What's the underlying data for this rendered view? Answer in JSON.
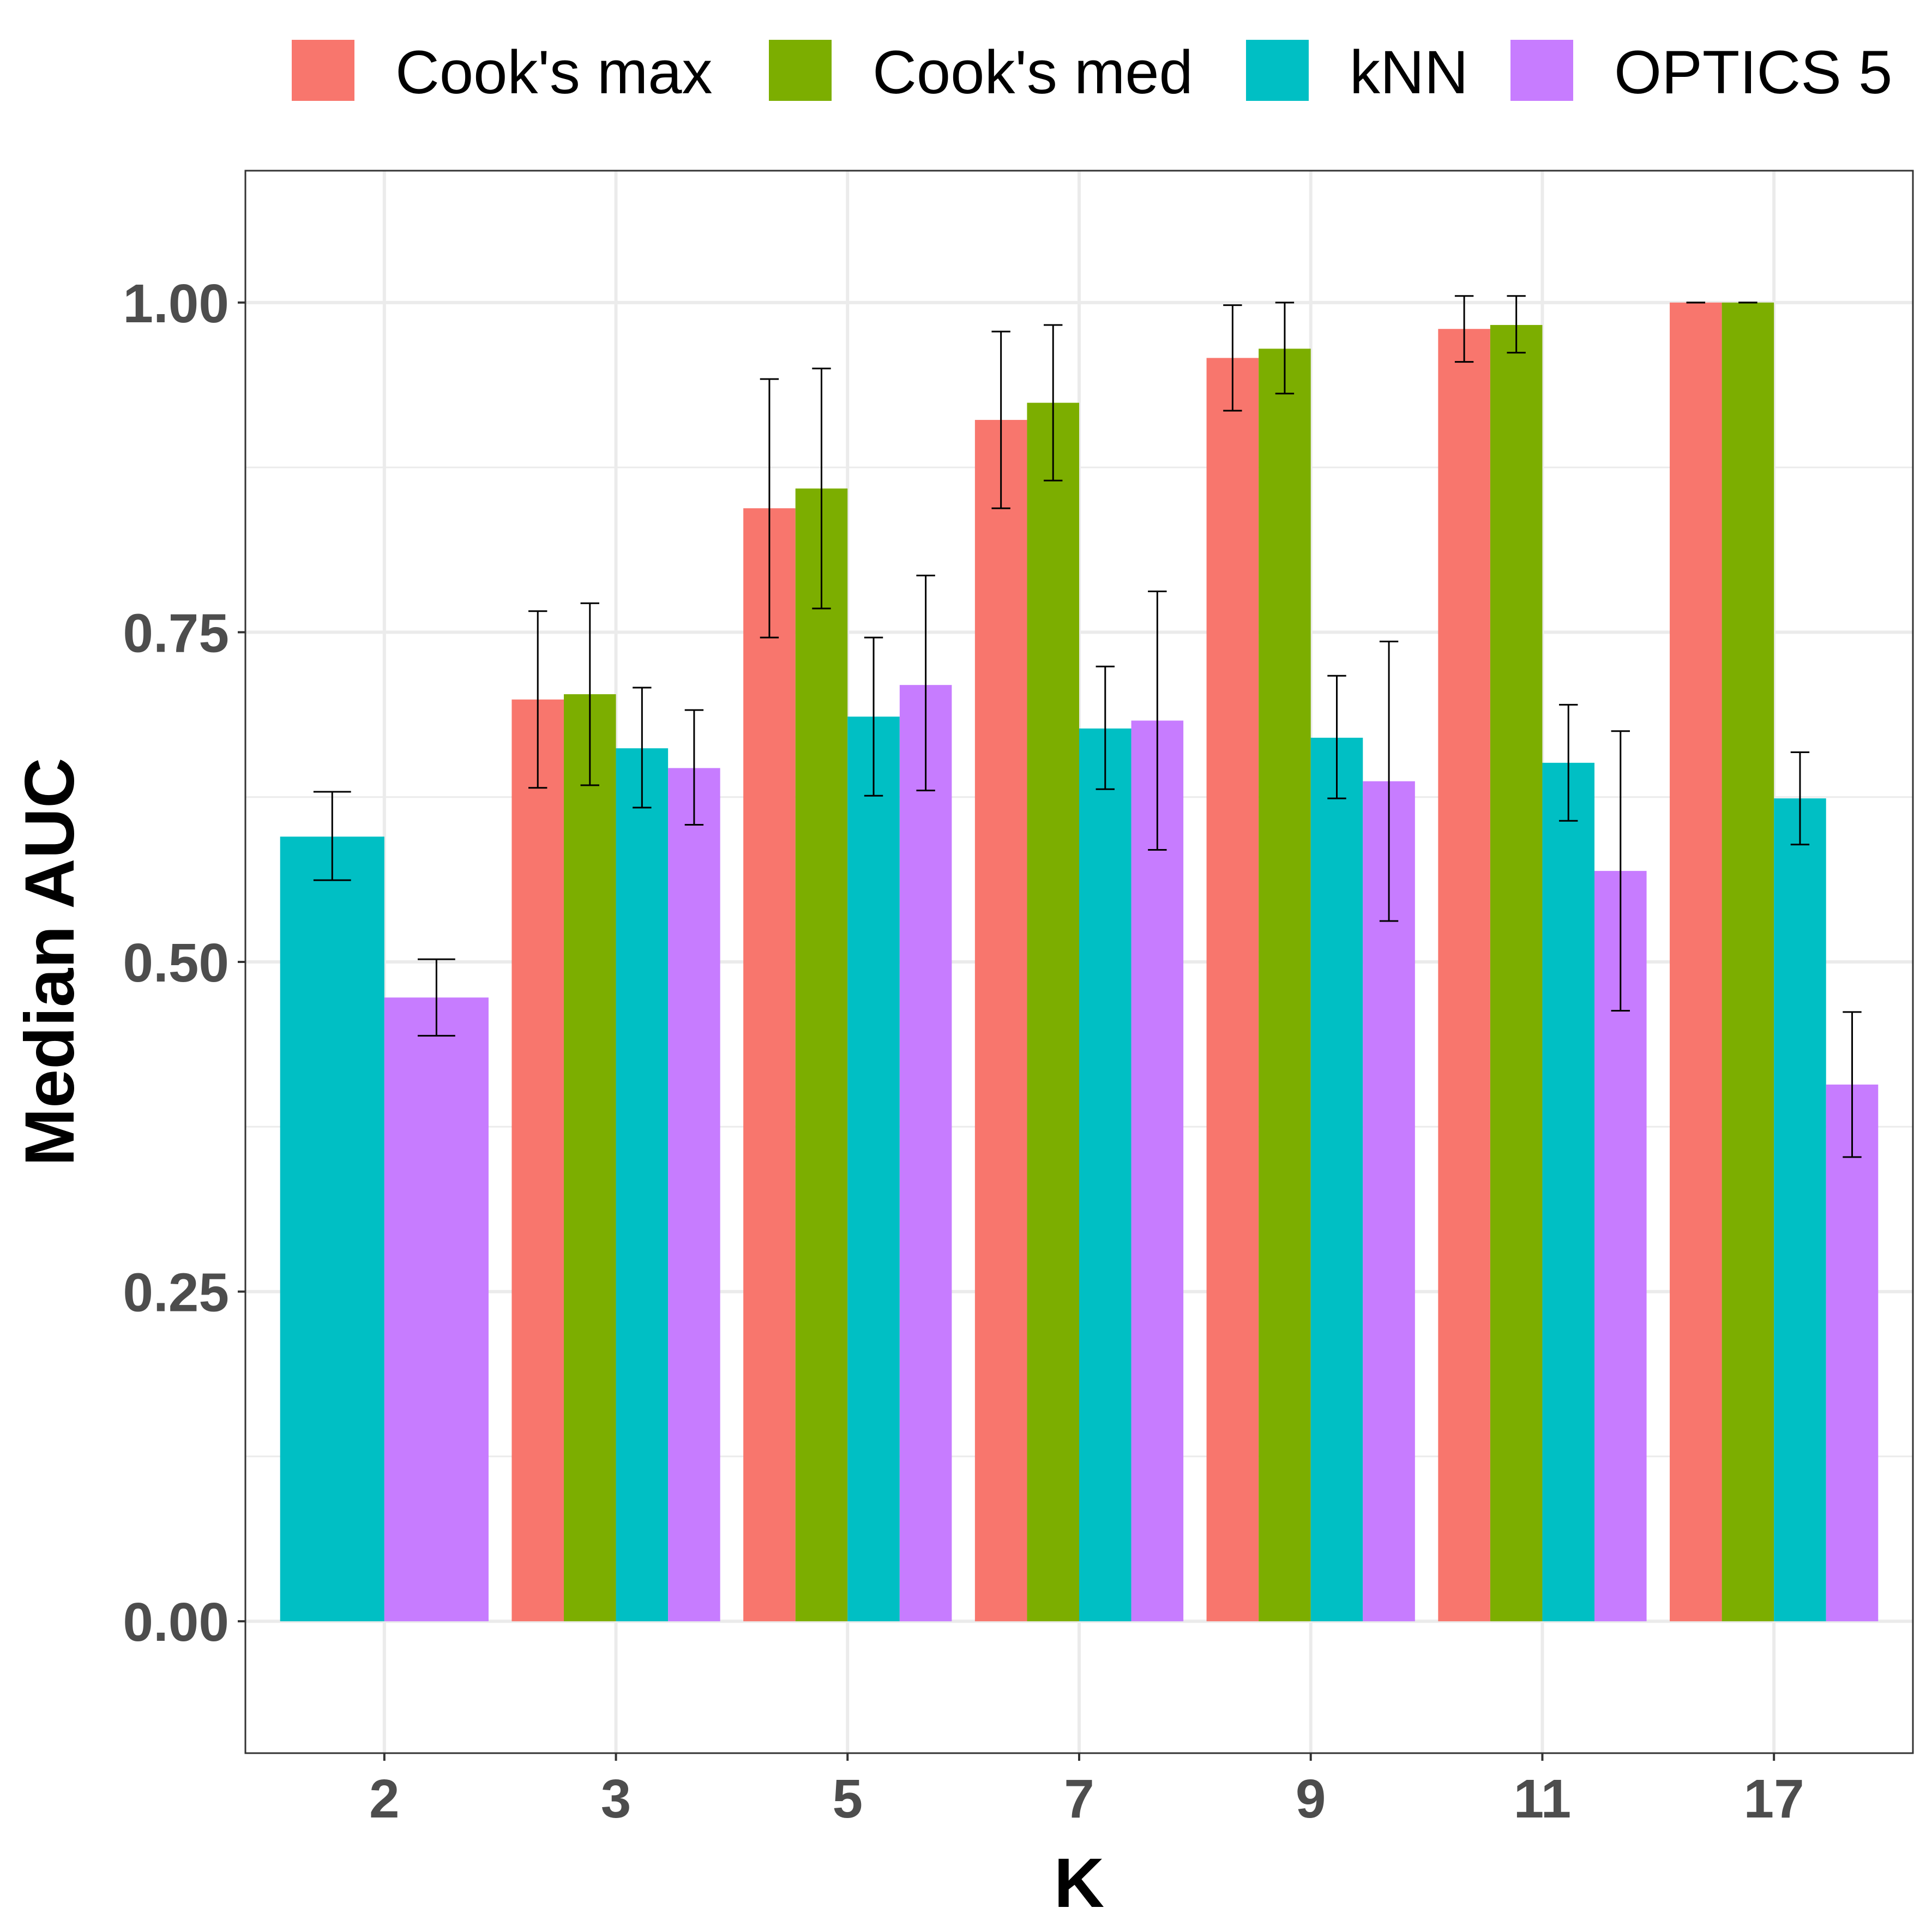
{
  "chart_data": {
    "type": "bar",
    "title": "",
    "xlabel": "K",
    "ylabel": "Median AUC",
    "categories": [
      "2",
      "3",
      "5",
      "7",
      "9",
      "11",
      "17"
    ],
    "ylim": [
      -0.1,
      1.1
    ],
    "yticks": [
      0.0,
      0.25,
      0.5,
      0.75,
      1.0
    ],
    "ytick_labels": [
      "0.00",
      "0.25",
      "0.50",
      "0.75",
      "1.00"
    ],
    "grid": true,
    "legend_position": "top",
    "series": [
      {
        "name": "Cook's max",
        "color": "#F8766D",
        "values": [
          null,
          0.699,
          0.844,
          0.911,
          0.958,
          0.98,
          1.0
        ],
        "err_low": [
          null,
          0.632,
          0.746,
          0.844,
          0.918,
          0.955,
          1.0
        ],
        "err_high": [
          null,
          0.766,
          0.942,
          0.978,
          0.998,
          1.005,
          1.0
        ]
      },
      {
        "name": "Cook's med",
        "color": "#7CAE00",
        "values": [
          null,
          0.703,
          0.859,
          0.924,
          0.965,
          0.983,
          1.0
        ],
        "err_low": [
          null,
          0.634,
          0.768,
          0.865,
          0.931,
          0.962,
          1.0
        ],
        "err_high": [
          null,
          0.772,
          0.95,
          0.983,
          1.0,
          1.005,
          1.0
        ]
      },
      {
        "name": "kNN",
        "color": "#00BFC4",
        "values": [
          0.595,
          0.662,
          0.686,
          0.677,
          0.67,
          0.651,
          0.624
        ],
        "err_low": [
          0.562,
          0.617,
          0.626,
          0.631,
          0.624,
          0.607,
          0.589
        ],
        "err_high": [
          0.629,
          0.708,
          0.746,
          0.724,
          0.717,
          0.695,
          0.659
        ]
      },
      {
        "name": "OPTICS 5",
        "color": "#C77CFF",
        "values": [
          0.473,
          0.647,
          0.71,
          0.683,
          0.637,
          0.569,
          0.407
        ],
        "err_low": [
          0.444,
          0.604,
          0.63,
          0.585,
          0.531,
          0.463,
          0.352
        ],
        "err_high": [
          0.502,
          0.691,
          0.793,
          0.781,
          0.743,
          0.675,
          0.462
        ]
      }
    ]
  }
}
